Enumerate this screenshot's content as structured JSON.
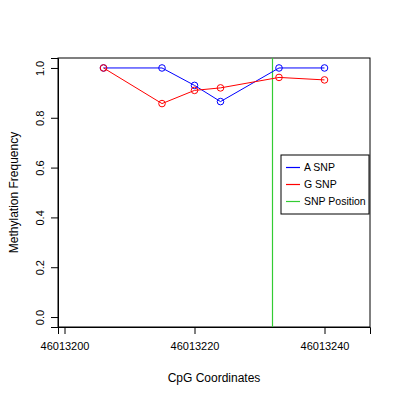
{
  "chart_data": {
    "type": "line",
    "x_label": "CpG Coordinates",
    "y_label": "Methylation Frequency",
    "x": [
      46013206,
      46013215,
      46013220,
      46013224,
      46013233,
      46013240
    ],
    "series": [
      {
        "name": "A SNP",
        "color": "#0000ff",
        "marker": "circle",
        "line_style": "solid",
        "values": [
          1.0,
          1.0,
          0.93,
          0.865,
          1.0,
          1.0
        ]
      },
      {
        "name": "G SNP",
        "color": "#ff0000",
        "marker": "circle",
        "line_style": "solid",
        "values": [
          1.0,
          0.857,
          0.91,
          0.92,
          0.962,
          0.952
        ]
      }
    ],
    "annotations": [
      {
        "name": "SNP Position",
        "x": 46013232,
        "color": "#33cc33"
      }
    ],
    "xlim": [
      46013199,
      46013247
    ],
    "xticks": [
      46013200,
      46013220,
      46013240
    ],
    "ylim": [
      -0.04,
      1.04
    ],
    "yticks": [
      {
        "value": 0,
        "label": "0.0"
      },
      0.2,
      0.4,
      0.6,
      0.8,
      {
        "value": 1,
        "label": "1.0"
      }
    ],
    "legend": "right",
    "grid": false
  }
}
